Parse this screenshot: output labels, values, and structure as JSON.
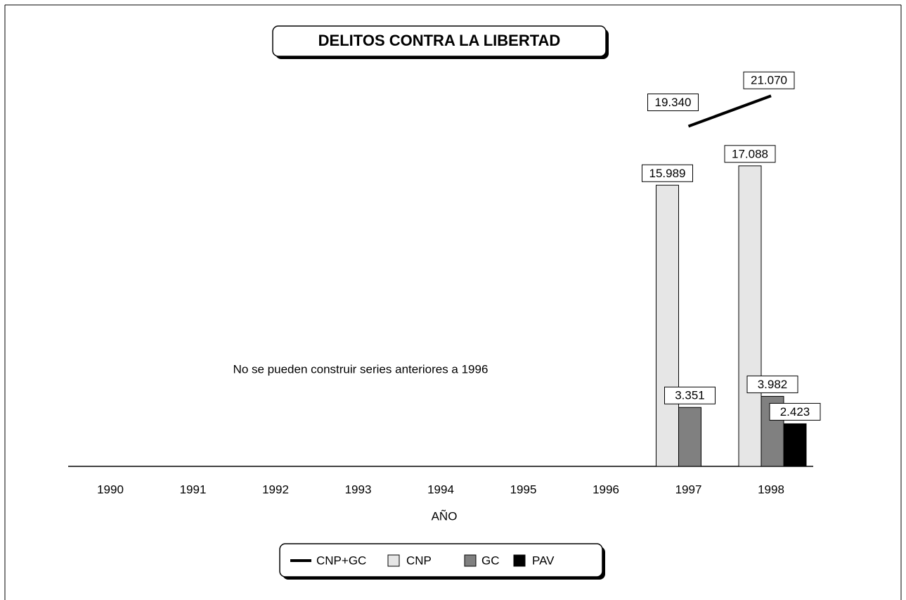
{
  "chart_data": {
    "type": "bar",
    "title": "DELITOS CONTRA LA LIBERTAD",
    "annotation": "No se pueden construir series anteriores a 1996",
    "x_label": "AÑO",
    "categories": [
      "1990",
      "1991",
      "1992",
      "1993",
      "1994",
      "1995",
      "1996",
      "1997",
      "1998"
    ],
    "ylim": [
      0,
      22000
    ],
    "series": [
      {
        "name": "CNP+GC",
        "type": "line",
        "color": "#000000",
        "values": [
          null,
          null,
          null,
          null,
          null,
          null,
          null,
          19340,
          21070
        ],
        "value_labels": [
          null,
          null,
          null,
          null,
          null,
          null,
          null,
          "19.340",
          "21.070"
        ]
      },
      {
        "name": "CNP",
        "color": "#e6e6e6",
        "values": [
          null,
          null,
          null,
          null,
          null,
          null,
          null,
          15989,
          17088
        ],
        "value_labels": [
          null,
          null,
          null,
          null,
          null,
          null,
          null,
          "15.989",
          "17.088"
        ]
      },
      {
        "name": "GC",
        "color": "#808080",
        "values": [
          null,
          null,
          null,
          null,
          null,
          null,
          null,
          3351,
          3982
        ],
        "value_labels": [
          null,
          null,
          null,
          null,
          null,
          null,
          null,
          "3.351",
          "3.982"
        ]
      },
      {
        "name": "PAV",
        "color": "#000000",
        "values": [
          null,
          null,
          null,
          null,
          null,
          null,
          null,
          null,
          2423
        ],
        "value_labels": [
          null,
          null,
          null,
          null,
          null,
          null,
          null,
          null,
          "2.423"
        ]
      }
    ]
  }
}
